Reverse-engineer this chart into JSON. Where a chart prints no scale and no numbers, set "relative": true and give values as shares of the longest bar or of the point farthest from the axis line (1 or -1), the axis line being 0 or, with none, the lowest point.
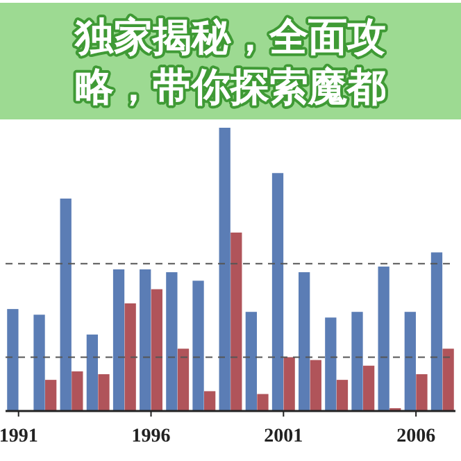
{
  "chart_data": {
    "type": "bar",
    "relative": true,
    "title": "独家揭秘，全面攻略，带你探索魔都",
    "categories": [
      "1991",
      null,
      null,
      null,
      null,
      "1996",
      null,
      null,
      null,
      null,
      "2001",
      null,
      null,
      null,
      null,
      "2006",
      null
    ],
    "series": [
      {
        "color": "#5b7db5",
        "values": [
          0.36,
          0.34,
          0.75,
          0.27,
          0.5,
          0.5,
          0.49,
          0.46,
          1,
          0.35,
          0.84,
          0.49,
          0.33,
          0.35,
          0.51,
          0.35,
          0.56
        ]
      },
      {
        "color": "#b0545a",
        "values": [
          null,
          0.11,
          0.14,
          0.13,
          0.38,
          0.43,
          0.22,
          0.07,
          0.63,
          0.06,
          0.19,
          0.18,
          0.11,
          0.16,
          0.01,
          0.13,
          0.22
        ]
      }
    ],
    "ref_lines": [
      {
        "axis": "y",
        "value": 0.52,
        "color": "#555555",
        "line_style": "dashed"
      },
      {
        "axis": "y",
        "value": 0.19,
        "color": "#555555",
        "line_style": "dashed"
      }
    ]
  }
}
